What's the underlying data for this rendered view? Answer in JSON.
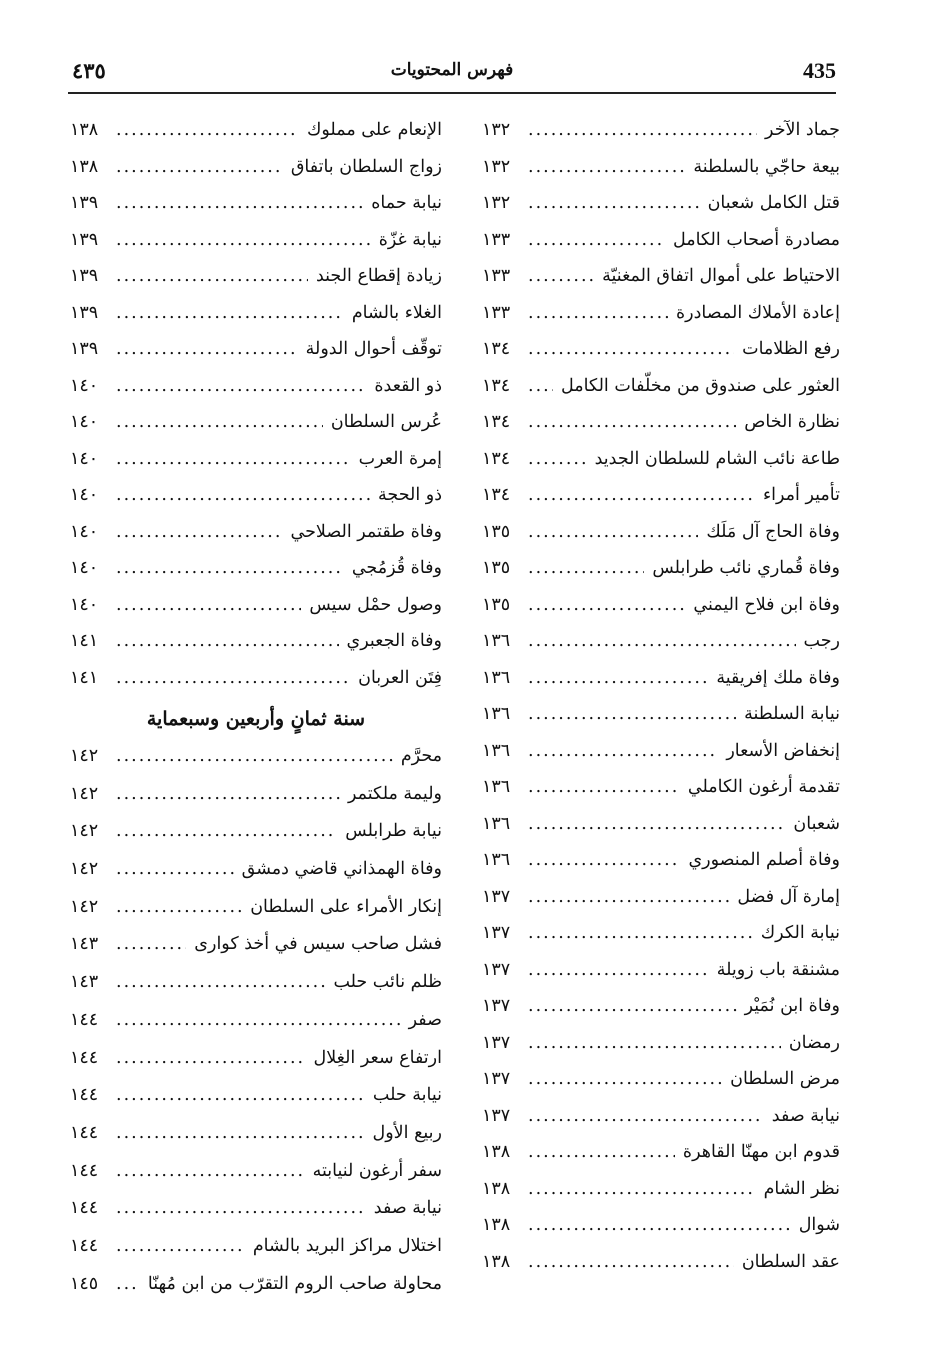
{
  "header": {
    "page_number_latin": "435",
    "page_number_arabic": "٤٣٥",
    "running_title": "فهرس المحتويات"
  },
  "right_column": [
    {
      "title": "جماد الآخر",
      "page": "١٣٢"
    },
    {
      "title": "بيعة حاجّي بالسلطنة",
      "page": "١٣٢"
    },
    {
      "title": "قتل الكامل شعبان",
      "page": "١٣٢"
    },
    {
      "title": "مصادرة أصحاب الكامل",
      "page": "١٣٣"
    },
    {
      "title": "الاحتياط على أموال اتفاق المغنيّة",
      "page": "١٣٣"
    },
    {
      "title": "إعادة الأملاك المصادرة",
      "page": "١٣٣"
    },
    {
      "title": "رفع الظلامات",
      "page": "١٣٤"
    },
    {
      "title": "العثور على صندوق من مخلّفات الكامل",
      "page": "١٣٤"
    },
    {
      "title": "نظارة الخاص",
      "page": "١٣٤"
    },
    {
      "title": "طاعة نائب الشام للسلطان الجديد",
      "page": "١٣٤"
    },
    {
      "title": "تأمير أمراء",
      "page": "١٣٤"
    },
    {
      "title": "وفاة الحاج آل مَلَك",
      "page": "١٣٥"
    },
    {
      "title": "وفاة قُماري نائب طرابلس",
      "page": "١٣٥"
    },
    {
      "title": "وفاة ابن فلاح اليمني",
      "page": "١٣٥"
    },
    {
      "title": "رجب",
      "page": "١٣٦"
    },
    {
      "title": "وفاة ملك إفريقية",
      "page": "١٣٦"
    },
    {
      "title": "نيابة السلطنة",
      "page": "١٣٦"
    },
    {
      "title": "إنخفاض الأسعار",
      "page": "١٣٦"
    },
    {
      "title": "تقدمة أرغون الكاملي",
      "page": "١٣٦"
    },
    {
      "title": "شعبان",
      "page": "١٣٦"
    },
    {
      "title": "وفاة أصلم المنصوري",
      "page": "١٣٦"
    },
    {
      "title": "إمارة آل فضل",
      "page": "١٣٧"
    },
    {
      "title": "نيابة الكرك",
      "page": "١٣٧"
    },
    {
      "title": "مشنقة باب زويلة",
      "page": "١٣٧"
    },
    {
      "title": "وفاة ابن نُمَيْر",
      "page": "١٣٧"
    },
    {
      "title": "رمضان",
      "page": "١٣٧"
    },
    {
      "title": "مرض السلطان",
      "page": "١٣٧"
    },
    {
      "title": "نيابة صفد",
      "page": "١٣٧"
    },
    {
      "title": "قدوم ابن مهنّا القاهرة",
      "page": "١٣٨"
    },
    {
      "title": "نظر الشام",
      "page": "١٣٨"
    },
    {
      "title": "شوال",
      "page": "١٣٨"
    },
    {
      "title": "عقد السلطان",
      "page": "١٣٨"
    }
  ],
  "left_column": {
    "entries_before": [
      {
        "title": "الإنعام على مملوك",
        "page": "١٣٨"
      },
      {
        "title": "زواج السلطان باتفاق",
        "page": "١٣٨"
      },
      {
        "title": "نيابة حماه",
        "page": "١٣٩"
      },
      {
        "title": "نيابة غزّة",
        "page": "١٣٩"
      },
      {
        "title": "زيادة إقطاع الجند",
        "page": "١٣٩"
      },
      {
        "title": "الغلاء بالشام",
        "page": "١٣٩"
      },
      {
        "title": "توقّف أحوال الدولة",
        "page": "١٣٩"
      },
      {
        "title": "ذو القعدة",
        "page": "١٤٠"
      },
      {
        "title": "عُرس السلطان",
        "page": "١٤٠"
      },
      {
        "title": "إمرة العرب",
        "page": "١٤٠"
      },
      {
        "title": "ذو الحجة",
        "page": "١٤٠"
      },
      {
        "title": "وفاة طقتمر الصلاحي",
        "page": "١٤٠"
      },
      {
        "title": "وفاة قُزمُجي",
        "page": "١٤٠"
      },
      {
        "title": "وصول حمْل سيس",
        "page": "١٤٠"
      },
      {
        "title": "وفاة الجعبري",
        "page": "١٤١"
      },
      {
        "title": "فِتَن العربان",
        "page": "١٤١"
      }
    ],
    "section_heading": "سنة ثمانٍ وأربعين وسبعماية",
    "entries_after": [
      {
        "title": "محرَّم",
        "page": "١٤٢"
      },
      {
        "title": "وليمة ملكتمر",
        "page": "١٤٢"
      },
      {
        "title": "نيابة طرابلس",
        "page": "١٤٢"
      },
      {
        "title": "وفاة الهمذاني قاضي دمشق",
        "page": "١٤٢"
      },
      {
        "title": "إنكار الأمراء على السلطان",
        "page": "١٤٢"
      },
      {
        "title": "فشل صاحب سيس في أخذ كوارى",
        "page": "١٤٣"
      },
      {
        "title": "ظلم نائب حلب",
        "page": "١٤٣"
      },
      {
        "title": "صفر",
        "page": "١٤٤"
      },
      {
        "title": "ارتفاع سعر الغِلال",
        "page": "١٤٤"
      },
      {
        "title": "نيابة حلب",
        "page": "١٤٤"
      },
      {
        "title": "ربيع الأول",
        "page": "١٤٤"
      },
      {
        "title": "سفر أرغون لنيابته",
        "page": "١٤٤"
      },
      {
        "title": "نيابة صفد",
        "page": "١٤٤"
      },
      {
        "title": "اختلال مراكز البريد بالشام",
        "page": "١٤٤"
      },
      {
        "title": "محاولة صاحب الروم التقرّب من ابن مُهنّا",
        "page": "١٤٥"
      }
    ]
  }
}
